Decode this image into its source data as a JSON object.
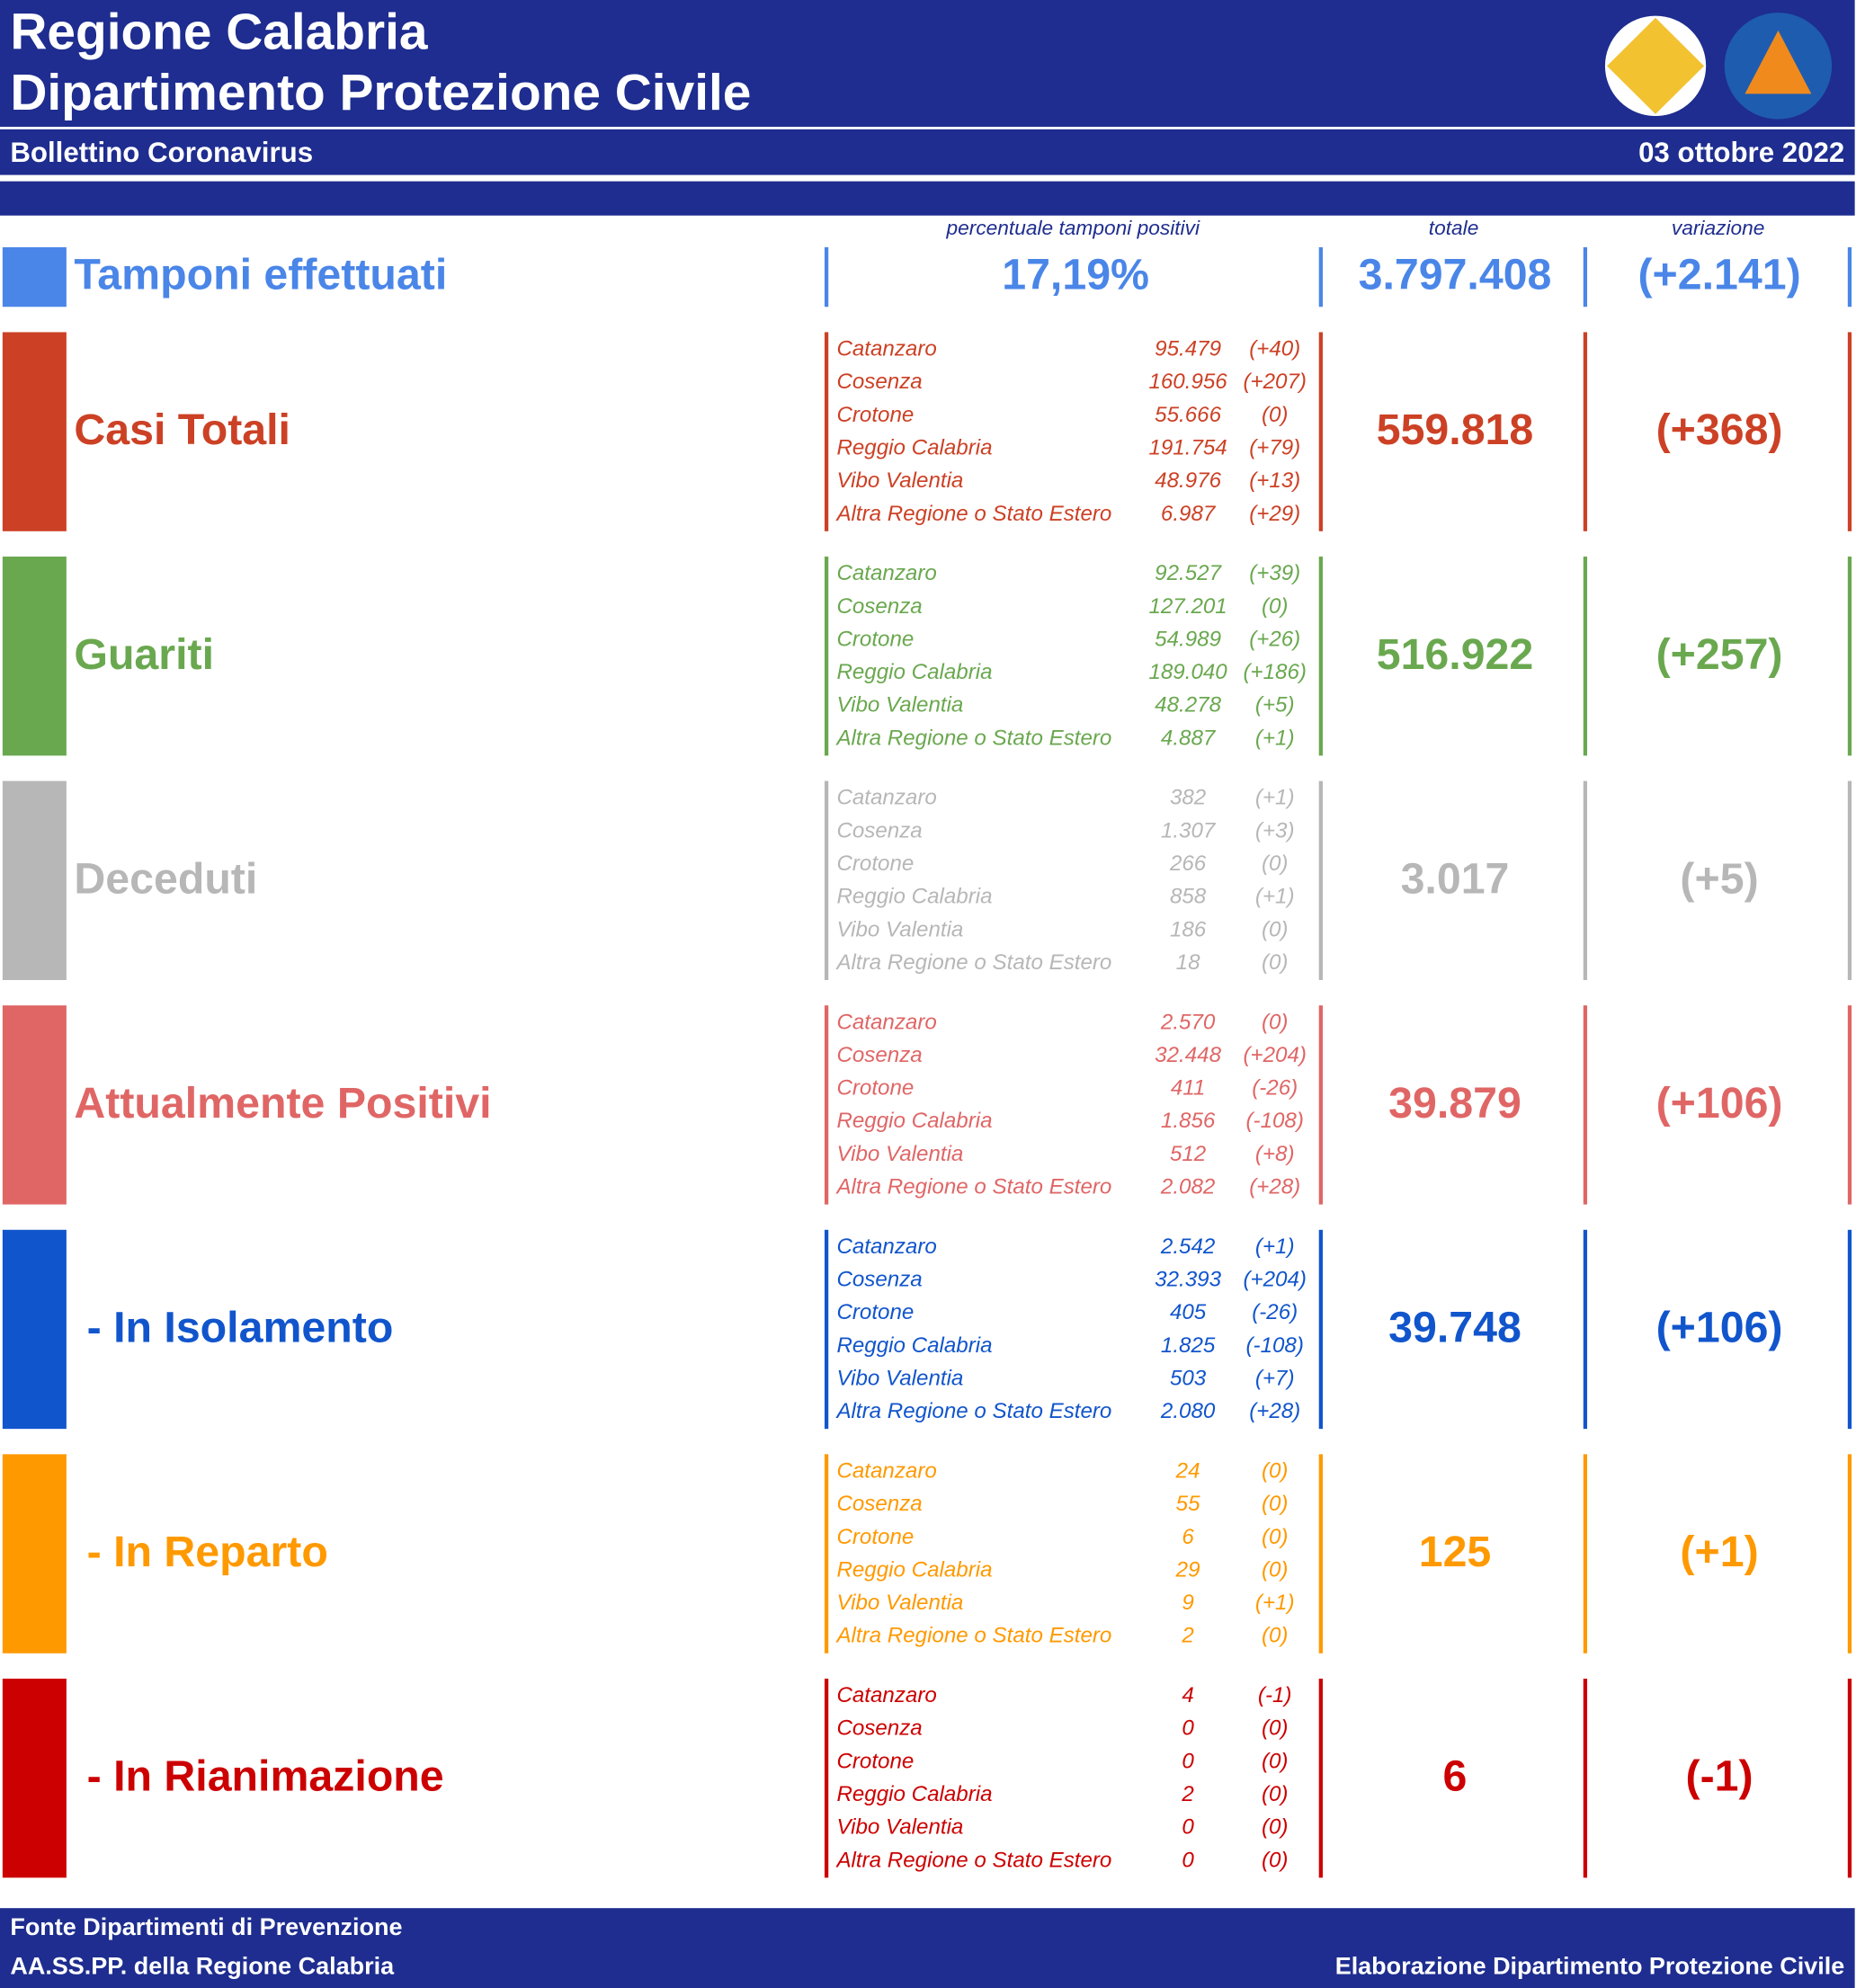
{
  "header": {
    "title_line1": "Regione Calabria",
    "title_line2": "Dipartimento Protezione Civile",
    "subtitle": "Bollettino Coronavirus",
    "date": "03 ottobre 2022"
  },
  "columns": {
    "percent": "percentuale tamponi positivi",
    "total": "totale",
    "change": "variazione"
  },
  "tests": {
    "label": "Tamponi effettuati",
    "color": "#4a86e8",
    "percent": "17,19%",
    "total": "3.797.408",
    "change": "(+2.141)"
  },
  "sections": [
    {
      "label": "Casi Totali",
      "color": "#cc4125",
      "total": "559.818",
      "change": "(+368)",
      "rows": [
        [
          "Catanzaro",
          "95.479",
          "(+40)"
        ],
        [
          "Cosenza",
          "160.956",
          "(+207)"
        ],
        [
          "Crotone",
          "55.666",
          "(0)"
        ],
        [
          "Reggio Calabria",
          "191.754",
          "(+79)"
        ],
        [
          "Vibo Valentia",
          "48.976",
          "(+13)"
        ],
        [
          "Altra Regione o Stato Estero",
          "6.987",
          "(+29)"
        ]
      ]
    },
    {
      "label": "Guariti",
      "color": "#6aa84f",
      "total": "516.922",
      "change": "(+257)",
      "rows": [
        [
          "Catanzaro",
          "92.527",
          "(+39)"
        ],
        [
          "Cosenza",
          "127.201",
          "(0)"
        ],
        [
          "Crotone",
          "54.989",
          "(+26)"
        ],
        [
          "Reggio Calabria",
          "189.040",
          "(+186)"
        ],
        [
          "Vibo Valentia",
          "48.278",
          "(+5)"
        ],
        [
          "Altra Regione o Stato Estero",
          "4.887",
          "(+1)"
        ]
      ]
    },
    {
      "label": "Deceduti",
      "color": "#b7b7b7",
      "total": "3.017",
      "change": "(+5)",
      "rows": [
        [
          "Catanzaro",
          "382",
          "(+1)"
        ],
        [
          "Cosenza",
          "1.307",
          "(+3)"
        ],
        [
          "Crotone",
          "266",
          "(0)"
        ],
        [
          "Reggio Calabria",
          "858",
          "(+1)"
        ],
        [
          "Vibo Valentia",
          "186",
          "(0)"
        ],
        [
          "Altra Regione o Stato Estero",
          "18",
          "(0)"
        ]
      ]
    },
    {
      "label": "Attualmente Positivi",
      "color": "#e06666",
      "total": "39.879",
      "change": "(+106)",
      "rows": [
        [
          "Catanzaro",
          "2.570",
          "(0)"
        ],
        [
          "Cosenza",
          "32.448",
          "(+204)"
        ],
        [
          "Crotone",
          "411",
          "(-26)"
        ],
        [
          "Reggio Calabria",
          "1.856",
          "(-108)"
        ],
        [
          "Vibo Valentia",
          "512",
          "(+8)"
        ],
        [
          "Altra Regione o Stato Estero",
          "2.082",
          "(+28)"
        ]
      ]
    },
    {
      "label": "- In Isolamento",
      "color": "#1155cc",
      "total": "39.748",
      "change": "(+106)",
      "rows": [
        [
          "Catanzaro",
          "2.542",
          "(+1)"
        ],
        [
          "Cosenza",
          "32.393",
          "(+204)"
        ],
        [
          "Crotone",
          "405",
          "(-26)"
        ],
        [
          "Reggio Calabria",
          "1.825",
          "(-108)"
        ],
        [
          "Vibo Valentia",
          "503",
          "(+7)"
        ],
        [
          "Altra Regione o Stato Estero",
          "2.080",
          "(+28)"
        ]
      ]
    },
    {
      "label": "- In Reparto",
      "color": "#ff9900",
      "total": "125",
      "change": "(+1)",
      "rows": [
        [
          "Catanzaro",
          "24",
          "(0)"
        ],
        [
          "Cosenza",
          "55",
          "(0)"
        ],
        [
          "Crotone",
          "6",
          "(0)"
        ],
        [
          "Reggio Calabria",
          "29",
          "(0)"
        ],
        [
          "Vibo Valentia",
          "9",
          "(+1)"
        ],
        [
          "Altra Regione o Stato Estero",
          "2",
          "(0)"
        ]
      ]
    },
    {
      "label": "- In Rianimazione",
      "color": "#cc0000",
      "total": "6",
      "change": "(-1)",
      "rows": [
        [
          "Catanzaro",
          "4",
          "(-1)"
        ],
        [
          "Cosenza",
          "0",
          "(0)"
        ],
        [
          "Crotone",
          "0",
          "(0)"
        ],
        [
          "Reggio Calabria",
          "2",
          "(0)"
        ],
        [
          "Vibo Valentia",
          "0",
          "(0)"
        ],
        [
          "Altra Regione o Stato Estero",
          "0",
          "(0)"
        ]
      ]
    }
  ],
  "footer": {
    "line1": "Fonte Dipartimenti di Prevenzione",
    "line2": "AA.SS.PP.  della Regione Calabria",
    "right": "Elaborazione Dipartimento Protezione Civile"
  }
}
